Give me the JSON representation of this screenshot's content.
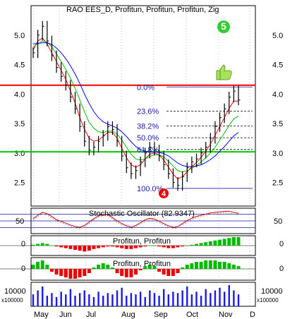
{
  "chart_data": {
    "type": "line",
    "title": "RAO EES_D, Profitun, Profitun, Profitun, Zig",
    "months": [
      "May",
      "Jun",
      "Jul",
      "Aug",
      "Sep",
      "Oct",
      "Nov",
      "D"
    ],
    "price_panel": {
      "ylim": [
        2.1,
        5.5
      ],
      "yticks": [
        "5.0",
        "4.5",
        "4.0",
        "3.5",
        "3.0",
        "2.5"
      ],
      "ytick_values": [
        5.0,
        4.5,
        4.0,
        3.5,
        3.0,
        2.5
      ],
      "horizontal_lines": [
        {
          "value": 4.15,
          "color": "#ff0000"
        },
        {
          "value": 3.02,
          "color": "#00cc00"
        }
      ],
      "fibonacci": {
        "levels": [
          {
            "label": "0.0%",
            "value": 4.12
          },
          {
            "label": "23.6%",
            "value": 3.71
          },
          {
            "label": "38.2%",
            "value": 3.46
          },
          {
            "label": "50.0%",
            "value": 3.26
          },
          {
            "label": "61.8%",
            "value": 3.06
          },
          {
            "label": "100.0%",
            "value": 2.4
          }
        ]
      },
      "close_series": [
        4.7,
        5.0,
        5.15,
        4.9,
        4.65,
        4.45,
        4.3,
        4.15,
        3.95,
        3.75,
        3.45,
        3.2,
        3.05,
        3.1,
        3.2,
        3.3,
        3.45,
        3.4,
        3.2,
        2.95,
        2.75,
        2.65,
        2.7,
        2.85,
        3.0,
        3.1,
        3.05,
        2.95,
        2.8,
        2.65,
        2.5,
        2.45,
        2.6,
        2.75,
        2.85,
        2.9,
        3.0,
        3.1,
        3.25,
        3.45,
        3.6,
        3.75,
        3.95,
        4.05,
        3.9
      ],
      "ma_series": [
        {
          "color": "#ff0000",
          "values": [
            4.75,
            4.9,
            4.95,
            4.85,
            4.7,
            4.55,
            4.4,
            4.25,
            4.05,
            3.85,
            3.6,
            3.4,
            3.25,
            3.2,
            3.22,
            3.28,
            3.35,
            3.35,
            3.25,
            3.08,
            2.92,
            2.8,
            2.76,
            2.8,
            2.9,
            2.98,
            3.0,
            2.97,
            2.88,
            2.76,
            2.64,
            2.56,
            2.6,
            2.68,
            2.77,
            2.84,
            2.93,
            3.03,
            3.15,
            3.3,
            3.45,
            3.6,
            3.76,
            3.88,
            3.88
          ]
        },
        {
          "color": "#00bb00",
          "values": [
            4.8,
            4.85,
            4.9,
            4.88,
            4.8,
            4.68,
            4.55,
            4.42,
            4.27,
            4.1,
            3.9,
            3.7,
            3.52,
            3.42,
            3.36,
            3.35,
            3.37,
            3.37,
            3.32,
            3.22,
            3.1,
            2.98,
            2.9,
            2.88,
            2.9,
            2.94,
            2.97,
            2.97,
            2.93,
            2.86,
            2.78,
            2.7,
            2.68,
            2.7,
            2.74,
            2.79,
            2.85,
            2.92,
            3.0,
            3.1,
            3.22,
            3.34,
            3.47,
            3.58,
            3.63
          ]
        },
        {
          "color": "#0000ff",
          "values": [
            4.85,
            4.86,
            4.87,
            4.87,
            4.84,
            4.78,
            4.7,
            4.6,
            4.48,
            4.34,
            4.18,
            4.0,
            3.84,
            3.7,
            3.6,
            3.53,
            3.49,
            3.46,
            3.42,
            3.36,
            3.28,
            3.19,
            3.11,
            3.06,
            3.03,
            3.02,
            3.02,
            3.01,
            2.99,
            2.95,
            2.89,
            2.83,
            2.79,
            2.77,
            2.77,
            2.78,
            2.8,
            2.84,
            2.89,
            2.95,
            3.03,
            3.11,
            3.2,
            3.29,
            3.35
          ]
        }
      ],
      "markers": [
        {
          "label": "5",
          "color": "#33cc33"
        },
        {
          "label": "4",
          "color": "#ee0000"
        }
      ]
    },
    "stochastic_panel": {
      "label": "Stochastic Oscillator (82.9347)",
      "ytick": "50",
      "range": [
        0,
        100
      ],
      "values": [
        60,
        75,
        88,
        82,
        70,
        55,
        48,
        40,
        32,
        25,
        22,
        30,
        45,
        60,
        72,
        80,
        78,
        65,
        50,
        38,
        28,
        22,
        30,
        42,
        55,
        62,
        58,
        48,
        38,
        28,
        22,
        25,
        38,
        52,
        62,
        70,
        75,
        80,
        85,
        88,
        90,
        92,
        93,
        88,
        83
      ]
    },
    "profitun_panel_1": {
      "label": "Profitun, Profitun",
      "ytick": "0",
      "values": [
        1,
        2,
        3,
        2,
        0,
        -1,
        -2,
        -3,
        -4,
        -5,
        -6,
        -7,
        -6,
        -4,
        -3,
        -2,
        -1,
        -1,
        -2,
        -3,
        -4,
        -4,
        -3,
        -2,
        -1,
        0,
        0,
        -1,
        -2,
        -3,
        -3,
        -2,
        -1,
        0,
        1,
        2,
        3,
        4,
        5,
        6,
        7,
        8,
        9,
        10,
        10
      ]
    },
    "profitun_panel_2": {
      "label": "Profitun, Profitun",
      "ytick": "0",
      "values": [
        3,
        5,
        6,
        3,
        -2,
        -4,
        -5,
        -6,
        -7,
        -7,
        -6,
        -5,
        -3,
        1,
        3,
        4,
        3,
        1,
        -3,
        -5,
        -6,
        -6,
        -4,
        -1,
        2,
        3,
        2,
        -2,
        -4,
        -5,
        -5,
        -3,
        1,
        3,
        4,
        5,
        5,
        6,
        6,
        6,
        5,
        5,
        4,
        3,
        2
      ]
    },
    "volume_panel": {
      "ytick": "10000",
      "unit_label": "x100000",
      "values": [
        9,
        12,
        15,
        8,
        10,
        7,
        11,
        9,
        13,
        8,
        10,
        12,
        9,
        7,
        11,
        8,
        10,
        9,
        12,
        14,
        8,
        10,
        9,
        11,
        7,
        12,
        10,
        8,
        13,
        9,
        11,
        10,
        12,
        15,
        9,
        11,
        8,
        13,
        10,
        12,
        14,
        11,
        16,
        12,
        9
      ]
    }
  }
}
